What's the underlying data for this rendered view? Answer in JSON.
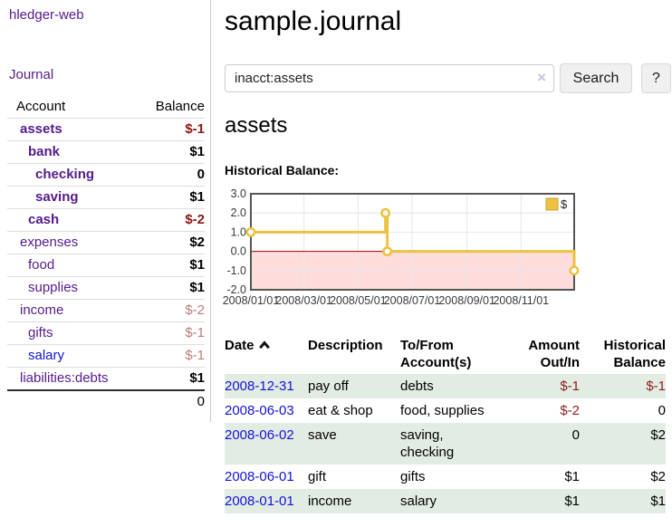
{
  "app": {
    "brand": "hledger-web",
    "nav_journal": "Journal"
  },
  "sidebar": {
    "headers": {
      "account": "Account",
      "balance": "Balance"
    },
    "rows": [
      {
        "account": "assets",
        "balance": "$-1"
      },
      {
        "account": "bank",
        "balance": "$1"
      },
      {
        "account": "checking",
        "balance": "0"
      },
      {
        "account": "saving",
        "balance": "$1"
      },
      {
        "account": "cash",
        "balance": "$-2"
      },
      {
        "account": "expenses",
        "balance": "$2"
      },
      {
        "account": "food",
        "balance": "$1"
      },
      {
        "account": "supplies",
        "balance": "$1"
      },
      {
        "account": "income",
        "balance": "$-2"
      },
      {
        "account": "gifts",
        "balance": "$-1"
      },
      {
        "account": "salary",
        "balance": "$-1"
      },
      {
        "account": "liabilities:debts",
        "balance": "$1"
      }
    ],
    "total": "0"
  },
  "main": {
    "title": "sample.journal",
    "search": {
      "value": "inacct:assets",
      "clear": "×",
      "search_button": "Search",
      "help_button": "?"
    },
    "heading": "assets",
    "section_label": "Historical Balance:"
  },
  "icons": {
    "sort": "chevron-up-icon",
    "clear": "clear-x-icon"
  },
  "chart_data": {
    "type": "line",
    "step": true,
    "title": "Historical Balance:",
    "x_start": "2008-01-01",
    "x_end": "2008-12-31",
    "ylim": [
      -2,
      3
    ],
    "yticks": [
      "3.0",
      "2.0",
      "1.0",
      "0.0",
      "-1.0",
      "-2.0"
    ],
    "xticks": [
      {
        "date": "2008-01-01",
        "label": "2008/01/01"
      },
      {
        "date": "2008-03-01",
        "label": "2008/03/01"
      },
      {
        "date": "2008-05-01",
        "label": "2008/05/01"
      },
      {
        "date": "2008-07-01",
        "label": "2008/07/01"
      },
      {
        "date": "2008-09-01",
        "label": "2008/09/01"
      },
      {
        "date": "2008-11-01",
        "label": "2008/11/01"
      }
    ],
    "series": [
      {
        "name": "$",
        "color": "#edc240",
        "points": [
          {
            "date": "2008-01-01",
            "value": 1
          },
          {
            "date": "2008-06-01",
            "value": 2
          },
          {
            "date": "2008-06-03",
            "value": 0
          },
          {
            "date": "2008-12-31",
            "value": -1
          }
        ]
      }
    ],
    "legend": {
      "label": "$",
      "position": "top-right"
    },
    "grid": true,
    "negative_fill": "#ffdddd",
    "zero_line_color": "#aa0000",
    "border_color": "#555555"
  },
  "register": {
    "headers": {
      "date": "Date",
      "description": "Description",
      "accounts": "To/From Account(s)",
      "amount": "Amount Out/In",
      "balance": "Historical Balance"
    },
    "rows": [
      {
        "date": "2008-12-31",
        "description": "pay off",
        "accounts": "debts",
        "amount": "$-1",
        "balance": "$-1"
      },
      {
        "date": "2008-06-03",
        "description": "eat & shop",
        "accounts": "food, supplies",
        "amount": "$-2",
        "balance": "0"
      },
      {
        "date": "2008-06-02",
        "description": "save",
        "accounts": "saving, checking",
        "amount": "0",
        "balance": "$2"
      },
      {
        "date": "2008-06-01",
        "description": "gift",
        "accounts": "gifts",
        "amount": "$1",
        "balance": "$2"
      },
      {
        "date": "2008-01-01",
        "description": "income",
        "accounts": "salary",
        "amount": "$1",
        "balance": "$1"
      }
    ]
  }
}
